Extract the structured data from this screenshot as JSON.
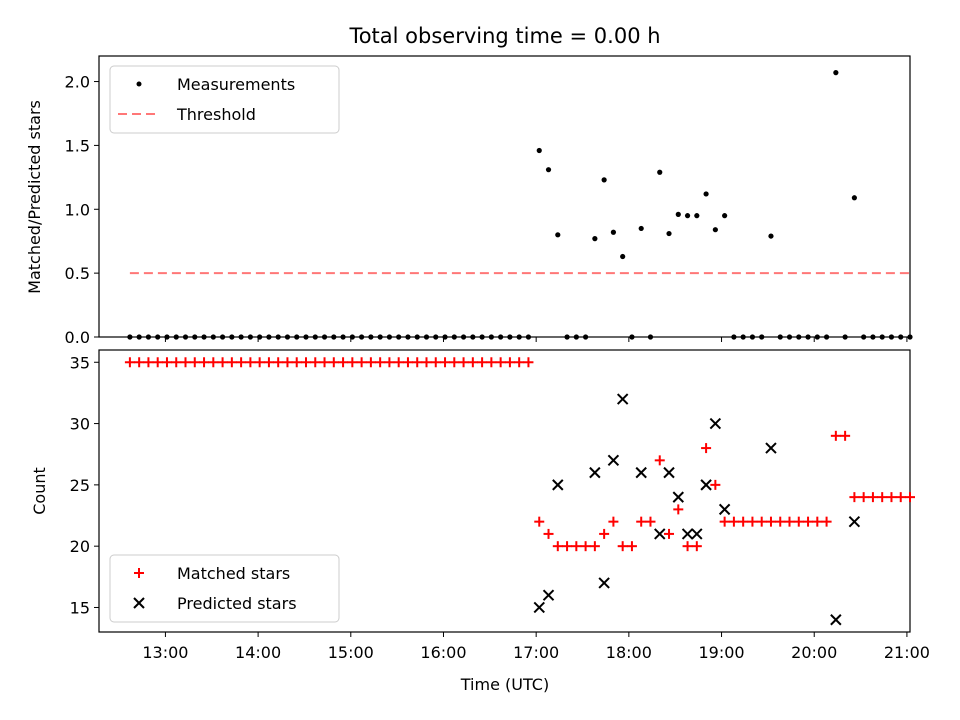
{
  "chart_data": [
    {
      "type": "scatter",
      "title": "Total observing time = 0.00 h",
      "ylabel": "Matched/Predicted stars",
      "xlabel": "",
      "xlim": [
        "12:17",
        "21:02"
      ],
      "ylim": [
        0,
        2.2
      ],
      "yticks": [
        "0.0",
        "0.5",
        "1.0",
        "1.5",
        "2.0"
      ],
      "grid": false,
      "legend_position": "upper-left",
      "series": [
        {
          "name": "Measurements",
          "color": "#000000",
          "marker": "dot",
          "points": [
            [
              "12:37",
              0
            ],
            [
              "12:43",
              0
            ],
            [
              "12:49",
              0
            ],
            [
              "12:55",
              0
            ],
            [
              "13:01",
              0
            ],
            [
              "13:07",
              0
            ],
            [
              "13:13",
              0
            ],
            [
              "13:19",
              0
            ],
            [
              "13:25",
              0
            ],
            [
              "13:31",
              0
            ],
            [
              "13:37",
              0
            ],
            [
              "13:43",
              0
            ],
            [
              "13:49",
              0
            ],
            [
              "13:55",
              0
            ],
            [
              "14:01",
              0
            ],
            [
              "14:07",
              0
            ],
            [
              "14:13",
              0
            ],
            [
              "14:19",
              0
            ],
            [
              "14:25",
              0
            ],
            [
              "14:31",
              0
            ],
            [
              "14:37",
              0
            ],
            [
              "14:43",
              0
            ],
            [
              "14:49",
              0
            ],
            [
              "14:55",
              0
            ],
            [
              "15:01",
              0
            ],
            [
              "15:07",
              0
            ],
            [
              "15:13",
              0
            ],
            [
              "15:19",
              0
            ],
            [
              "15:25",
              0
            ],
            [
              "15:31",
              0
            ],
            [
              "15:37",
              0
            ],
            [
              "15:43",
              0
            ],
            [
              "15:49",
              0
            ],
            [
              "15:55",
              0
            ],
            [
              "16:01",
              0
            ],
            [
              "16:07",
              0
            ],
            [
              "16:13",
              0
            ],
            [
              "16:19",
              0
            ],
            [
              "16:25",
              0
            ],
            [
              "16:31",
              0
            ],
            [
              "16:37",
              0
            ],
            [
              "16:43",
              0
            ],
            [
              "16:49",
              0
            ],
            [
              "16:55",
              0
            ],
            [
              "17:02",
              1.46
            ],
            [
              "17:08",
              1.31
            ],
            [
              "17:14",
              0.8
            ],
            [
              "17:20",
              0
            ],
            [
              "17:26",
              0
            ],
            [
              "17:32",
              0
            ],
            [
              "17:38",
              0.77
            ],
            [
              "17:44",
              1.23
            ],
            [
              "17:50",
              0.82
            ],
            [
              "17:56",
              0.63
            ],
            [
              "18:02",
              0
            ],
            [
              "18:08",
              0.85
            ],
            [
              "18:14",
              0
            ],
            [
              "18:20",
              1.29
            ],
            [
              "18:26",
              0.81
            ],
            [
              "18:32",
              0.96
            ],
            [
              "18:38",
              0.95
            ],
            [
              "18:44",
              0.95
            ],
            [
              "18:50",
              1.12
            ],
            [
              "18:56",
              0.84
            ],
            [
              "19:02",
              0.95
            ],
            [
              "19:08",
              0
            ],
            [
              "19:14",
              0
            ],
            [
              "19:20",
              0
            ],
            [
              "19:26",
              0
            ],
            [
              "19:32",
              0.79
            ],
            [
              "19:38",
              0
            ],
            [
              "19:44",
              0
            ],
            [
              "19:50",
              0
            ],
            [
              "19:56",
              0
            ],
            [
              "20:02",
              0
            ],
            [
              "20:08",
              0
            ],
            [
              "20:14",
              2.07
            ],
            [
              "20:20",
              0
            ],
            [
              "20:26",
              1.09
            ],
            [
              "20:32",
              0
            ],
            [
              "20:38",
              0
            ],
            [
              "20:44",
              0
            ],
            [
              "20:50",
              0
            ],
            [
              "20:56",
              0
            ],
            [
              "21:02",
              0
            ]
          ]
        },
        {
          "name": "Threshold",
          "color": "#ff7777",
          "style": "dashed",
          "x": [
            "12:37",
            "21:02"
          ],
          "y": [
            0.5,
            0.5
          ]
        }
      ]
    },
    {
      "type": "scatter",
      "title": "",
      "xlabel": "Time (UTC)",
      "ylabel": "Count",
      "xlim": [
        "12:17",
        "21:02"
      ],
      "ylim": [
        13,
        36
      ],
      "yticks": [
        "15",
        "20",
        "25",
        "30",
        "35"
      ],
      "xticks": [
        "13:00",
        "14:00",
        "15:00",
        "16:00",
        "17:00",
        "18:00",
        "19:00",
        "20:00",
        "21:00"
      ],
      "grid": false,
      "legend_position": "lower-left",
      "series": [
        {
          "name": "Matched stars",
          "color": "#ff0000",
          "marker": "plus",
          "points": [
            [
              "12:37",
              35
            ],
            [
              "12:43",
              35
            ],
            [
              "12:49",
              35
            ],
            [
              "12:55",
              35
            ],
            [
              "13:01",
              35
            ],
            [
              "13:07",
              35
            ],
            [
              "13:13",
              35
            ],
            [
              "13:19",
              35
            ],
            [
              "13:25",
              35
            ],
            [
              "13:31",
              35
            ],
            [
              "13:37",
              35
            ],
            [
              "13:43",
              35
            ],
            [
              "13:49",
              35
            ],
            [
              "13:55",
              35
            ],
            [
              "14:01",
              35
            ],
            [
              "14:07",
              35
            ],
            [
              "14:13",
              35
            ],
            [
              "14:19",
              35
            ],
            [
              "14:25",
              35
            ],
            [
              "14:31",
              35
            ],
            [
              "14:37",
              35
            ],
            [
              "14:43",
              35
            ],
            [
              "14:49",
              35
            ],
            [
              "14:55",
              35
            ],
            [
              "15:01",
              35
            ],
            [
              "15:07",
              35
            ],
            [
              "15:13",
              35
            ],
            [
              "15:19",
              35
            ],
            [
              "15:25",
              35
            ],
            [
              "15:31",
              35
            ],
            [
              "15:37",
              35
            ],
            [
              "15:43",
              35
            ],
            [
              "15:49",
              35
            ],
            [
              "15:55",
              35
            ],
            [
              "16:01",
              35
            ],
            [
              "16:07",
              35
            ],
            [
              "16:13",
              35
            ],
            [
              "16:19",
              35
            ],
            [
              "16:25",
              35
            ],
            [
              "16:31",
              35
            ],
            [
              "16:37",
              35
            ],
            [
              "16:43",
              35
            ],
            [
              "16:49",
              35
            ],
            [
              "16:55",
              35
            ],
            [
              "17:02",
              22
            ],
            [
              "17:08",
              21
            ],
            [
              "17:14",
              20
            ],
            [
              "17:20",
              20
            ],
            [
              "17:26",
              20
            ],
            [
              "17:32",
              20
            ],
            [
              "17:38",
              20
            ],
            [
              "17:44",
              21
            ],
            [
              "17:50",
              22
            ],
            [
              "17:56",
              20
            ],
            [
              "18:02",
              20
            ],
            [
              "18:08",
              22
            ],
            [
              "18:14",
              22
            ],
            [
              "18:20",
              27
            ],
            [
              "18:26",
              21
            ],
            [
              "18:32",
              23
            ],
            [
              "18:38",
              20
            ],
            [
              "18:44",
              20
            ],
            [
              "18:50",
              28
            ],
            [
              "18:56",
              25
            ],
            [
              "19:02",
              22
            ],
            [
              "19:08",
              22
            ],
            [
              "19:14",
              22
            ],
            [
              "19:20",
              22
            ],
            [
              "19:26",
              22
            ],
            [
              "19:32",
              22
            ],
            [
              "19:38",
              22
            ],
            [
              "19:44",
              22
            ],
            [
              "19:50",
              22
            ],
            [
              "19:56",
              22
            ],
            [
              "20:02",
              22
            ],
            [
              "20:08",
              22
            ],
            [
              "20:14",
              29
            ],
            [
              "20:20",
              29
            ],
            [
              "20:26",
              24
            ],
            [
              "20:32",
              24
            ],
            [
              "20:38",
              24
            ],
            [
              "20:44",
              24
            ],
            [
              "20:50",
              24
            ],
            [
              "20:56",
              24
            ],
            [
              "21:02",
              24
            ]
          ]
        },
        {
          "name": "Predicted stars",
          "color": "#000000",
          "marker": "x",
          "points": [
            [
              "17:02",
              15
            ],
            [
              "17:08",
              16
            ],
            [
              "17:14",
              25
            ],
            [
              "17:38",
              26
            ],
            [
              "17:44",
              17
            ],
            [
              "17:50",
              27
            ],
            [
              "17:56",
              32
            ],
            [
              "18:08",
              26
            ],
            [
              "18:20",
              21
            ],
            [
              "18:26",
              26
            ],
            [
              "18:32",
              24
            ],
            [
              "18:38",
              21
            ],
            [
              "18:44",
              21
            ],
            [
              "18:50",
              25
            ],
            [
              "18:56",
              30
            ],
            [
              "19:02",
              23
            ],
            [
              "19:32",
              28
            ],
            [
              "20:14",
              14
            ],
            [
              "20:26",
              22
            ]
          ]
        }
      ]
    }
  ]
}
